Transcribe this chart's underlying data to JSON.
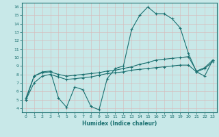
{
  "xlabel": "Humidex (Indice chaleur)",
  "ylabel": "",
  "bg_color": "#c8e8e8",
  "line_color": "#1a7070",
  "xlim": [
    -0.5,
    23.5
  ],
  "ylim": [
    3.5,
    16.5
  ],
  "yticks": [
    4,
    5,
    6,
    7,
    8,
    9,
    10,
    11,
    12,
    13,
    14,
    15,
    16
  ],
  "xticks": [
    0,
    1,
    2,
    3,
    4,
    5,
    6,
    7,
    8,
    9,
    10,
    11,
    12,
    13,
    14,
    15,
    16,
    17,
    18,
    19,
    20,
    21,
    22,
    23
  ],
  "line1_x": [
    0,
    1,
    2,
    3,
    4,
    5,
    6,
    7,
    8,
    9,
    10,
    11,
    12,
    13,
    14,
    15,
    16,
    17,
    18,
    19,
    20,
    21,
    22,
    23
  ],
  "line1_y": [
    5.0,
    7.8,
    8.3,
    8.4,
    5.2,
    4.1,
    6.5,
    6.2,
    4.2,
    3.8,
    7.5,
    8.7,
    9.0,
    13.3,
    15.0,
    16.0,
    15.2,
    15.2,
    14.6,
    13.5,
    10.5,
    8.3,
    7.8,
    9.7
  ],
  "line2_x": [
    0,
    1,
    2,
    3,
    4,
    5,
    6,
    7,
    8,
    9,
    10,
    11,
    12,
    13,
    14,
    15,
    16,
    17,
    18,
    19,
    20,
    21,
    22,
    23
  ],
  "line2_y": [
    5.2,
    7.8,
    8.2,
    8.3,
    8.0,
    7.8,
    7.9,
    8.0,
    8.1,
    8.2,
    8.4,
    8.5,
    8.7,
    8.9,
    9.2,
    9.4,
    9.7,
    9.8,
    9.9,
    10.0,
    10.1,
    8.4,
    8.8,
    9.7
  ],
  "line3_x": [
    0,
    1,
    2,
    3,
    4,
    5,
    6,
    7,
    8,
    9,
    10,
    11,
    12,
    13,
    14,
    15,
    16,
    17,
    18,
    19,
    20,
    21,
    22,
    23
  ],
  "line3_y": [
    5.0,
    7.0,
    7.8,
    8.0,
    7.7,
    7.4,
    7.5,
    7.6,
    7.7,
    7.9,
    8.1,
    8.2,
    8.3,
    8.5,
    8.6,
    8.7,
    8.8,
    8.9,
    9.0,
    9.1,
    9.1,
    8.3,
    8.7,
    9.5
  ]
}
